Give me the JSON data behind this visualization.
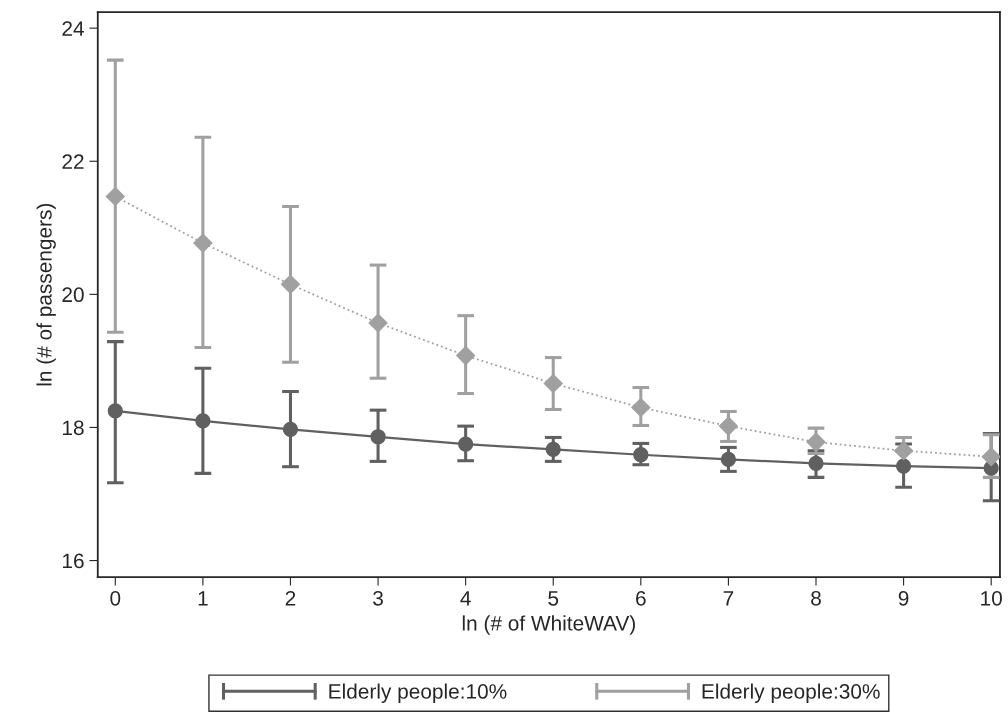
{
  "chart_data": {
    "type": "line",
    "xlabel": "ln (# of WhiteWAV)",
    "ylabel": "ln (# of passengers)",
    "x": [
      0,
      1,
      2,
      3,
      4,
      5,
      6,
      7,
      8,
      9,
      10
    ],
    "xlim": [
      -0.2,
      10.1
    ],
    "xticks": [
      0,
      1,
      2,
      3,
      4,
      5,
      6,
      7,
      8,
      9,
      10
    ],
    "ylim": [
      15.75,
      24.24
    ],
    "yticks": [
      16,
      18,
      20,
      22,
      24
    ],
    "grid": false,
    "legend": "bottom",
    "series": [
      {
        "name": "Elderly people:10%",
        "color": "#606060",
        "marker": "circle",
        "line_style": "solid",
        "values": [
          18.25,
          18.1,
          17.97,
          17.86,
          17.75,
          17.67,
          17.59,
          17.52,
          17.46,
          17.42,
          17.39
        ],
        "errors": [
          [
            17.17,
            19.29
          ],
          [
            17.31,
            18.89
          ],
          [
            17.41,
            18.54
          ],
          [
            17.49,
            18.26
          ],
          [
            17.5,
            18.02
          ],
          [
            17.49,
            17.85
          ],
          [
            17.44,
            17.76
          ],
          [
            17.34,
            17.7
          ],
          [
            17.25,
            17.65
          ],
          [
            17.1,
            17.75
          ],
          [
            16.9,
            17.91
          ]
        ]
      },
      {
        "name": "Elderly people:30%",
        "color": "#a0a0a0",
        "marker": "diamond",
        "line_style": "dotted",
        "values": [
          21.47,
          20.77,
          20.15,
          19.57,
          19.08,
          18.66,
          18.3,
          18.02,
          17.78,
          17.65,
          17.56
        ],
        "errors": [
          [
            19.43,
            23.52
          ],
          [
            19.2,
            22.36
          ],
          [
            18.98,
            21.32
          ],
          [
            18.74,
            20.44
          ],
          [
            18.51,
            19.68
          ],
          [
            18.27,
            19.05
          ],
          [
            18.03,
            18.6
          ],
          [
            17.79,
            18.24
          ],
          [
            17.61,
            17.99
          ],
          [
            17.65,
            17.85
          ],
          [
            17.25,
            17.89
          ]
        ]
      }
    ]
  }
}
